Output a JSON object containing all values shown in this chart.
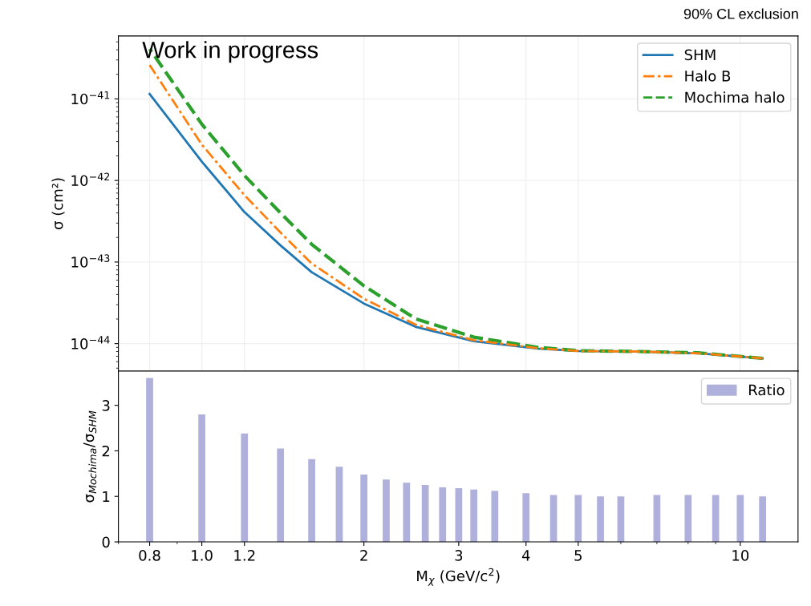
{
  "chart_data": [
    {
      "type": "line",
      "ylabel": "σ (cm²)",
      "annotations": [
        "90% CL exclusion",
        "Work in progress"
      ],
      "log": "xy",
      "xlim": [
        0.7,
        12.8
      ],
      "ylim": [
        4.6e-45,
        5.9e-41
      ],
      "xticks": [
        {
          "value": 0.8,
          "label": null
        },
        {
          "value": 1,
          "label": null
        },
        {
          "value": 1.2,
          "label": null
        },
        {
          "value": 2,
          "label": null
        },
        {
          "value": 3,
          "label": null
        },
        {
          "value": 4,
          "label": null
        },
        {
          "value": 5,
          "label": null
        },
        {
          "value": 10,
          "label": null
        }
      ],
      "yticks": [
        {
          "value": 1e-44,
          "label": "10$^{−44}$"
        },
        {
          "value": 1e-43,
          "label": "10$^{−43}$"
        },
        {
          "value": 1e-42,
          "label": "10$^{−42}$"
        },
        {
          "value": 1e-41,
          "label": "10$^{−41}$"
        }
      ],
      "tick_labels": "y",
      "grid": true,
      "legend": "top right",
      "x": [
        0.8,
        1.0,
        1.2,
        1.4,
        1.6,
        2.0,
        2.5,
        3.2,
        4.2,
        5.0,
        6.5,
        8.4,
        11
      ],
      "series": [
        {
          "name": "SHM",
          "color": "#1f77b4",
          "line_style": "solid",
          "values": [
            1.15e-41,
            1.7e-42,
            4.1e-43,
            1.6e-43,
            7.5e-44,
            3.1e-44,
            1.6e-44,
            1.07e-44,
            8.7e-45,
            8.1e-45,
            8e-45,
            7.6e-45,
            6.6e-45
          ]
        },
        {
          "name": "Halo B",
          "color": "#ff7f0e",
          "line_style": "dashdot",
          "values": [
            2.6e-41,
            2.75e-42,
            6.6e-43,
            2.3e-43,
            9.6e-44,
            3.55e-44,
            1.7e-44,
            1.1e-44,
            8.8e-45,
            8.1e-45,
            8e-45,
            7.6e-45,
            6.6e-45
          ]
        },
        {
          "name": "Mochima halo",
          "color": "#2ca02c",
          "line_style": "dashed",
          "values": [
            4.1e-41,
            4.9e-42,
            1.15e-42,
            4e-43,
            1.65e-43,
            5.1e-44,
            2e-44,
            1.2e-44,
            9e-45,
            8.2e-45,
            8e-45,
            7.7e-45,
            6.6e-45
          ]
        }
      ]
    },
    {
      "type": "bar",
      "xlabel": "M$_{χ}$ (GeV/c$^{2}$)",
      "ylabel": "σ$_{Mochima}$/σ$_{SHM}$",
      "log": "x",
      "xlim": [
        0.7,
        12.8
      ],
      "ylim": [
        0,
        3.75
      ],
      "xticks": [
        {
          "value": 0.8,
          "label": "0.8"
        },
        {
          "value": 1,
          "label": "1.0"
        },
        {
          "value": 1.2,
          "label": "1.2"
        },
        2,
        3,
        4,
        5,
        10
      ],
      "yticks": [
        0,
        1,
        2,
        3
      ],
      "grid": false,
      "legend": "top right",
      "x": [
        0.8,
        1.0,
        1.2,
        1.4,
        1.6,
        1.8,
        2.0,
        2.2,
        2.4,
        2.6,
        2.8,
        3.0,
        3.2,
        3.5,
        4,
        4.5,
        5,
        5.5,
        6,
        7,
        8,
        9,
        10,
        11
      ],
      "series": [
        {
          "name": "Ratio",
          "color": "#b0b0dc",
          "values": [
            3.6,
            2.8,
            2.38,
            2.05,
            1.82,
            1.65,
            1.48,
            1.37,
            1.3,
            1.25,
            1.2,
            1.18,
            1.15,
            1.12,
            1.07,
            1.03,
            1.03,
            1.0,
            1.0,
            1.03,
            1.03,
            1.03,
            1.03,
            1.0
          ]
        }
      ]
    }
  ]
}
